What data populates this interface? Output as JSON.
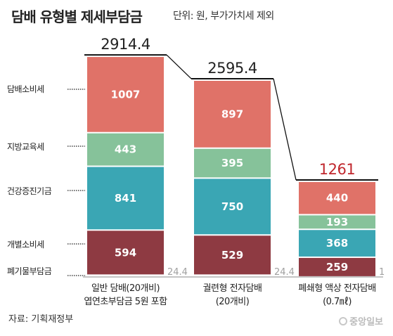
{
  "title": "담배 유형별 제세부담금",
  "subtitle": "단위: 원, 부가가치세 제외",
  "source": "자료: 기획재정부",
  "logo": "중앙일보",
  "chart_data": {
    "type": "bar",
    "stacked": true,
    "categories": [
      {
        "line1": "일반 담배(20개비)",
        "line2": "엽연초부담금 5원 포함"
      },
      {
        "line1": "궐련형 전자담배",
        "line2": "(20개비)"
      },
      {
        "line1": "폐쇄형 액상 전자담배",
        "line2": "(0.7㎖)"
      }
    ],
    "totals": [
      "2914.4",
      "2595.4",
      "1261"
    ],
    "series": [
      {
        "name": "폐기물부담금",
        "values": [
          "24.4",
          "24.4",
          "1"
        ],
        "color": "#9a9a9a"
      },
      {
        "name": "개별소비세",
        "values": [
          "594",
          "529",
          "259"
        ],
        "color": "#8e3a42"
      },
      {
        "name": "건강증진기금",
        "values": [
          "841",
          "750",
          "368"
        ],
        "color": "#3aa6b4"
      },
      {
        "name": "지방교육세",
        "values": [
          "443",
          "395",
          "193"
        ],
        "color": "#86c29a"
      },
      {
        "name": "담배소비세",
        "values": [
          "1007",
          "897",
          "440"
        ],
        "color": "#e07268"
      }
    ],
    "total_color_highlight": "#c0272d"
  }
}
